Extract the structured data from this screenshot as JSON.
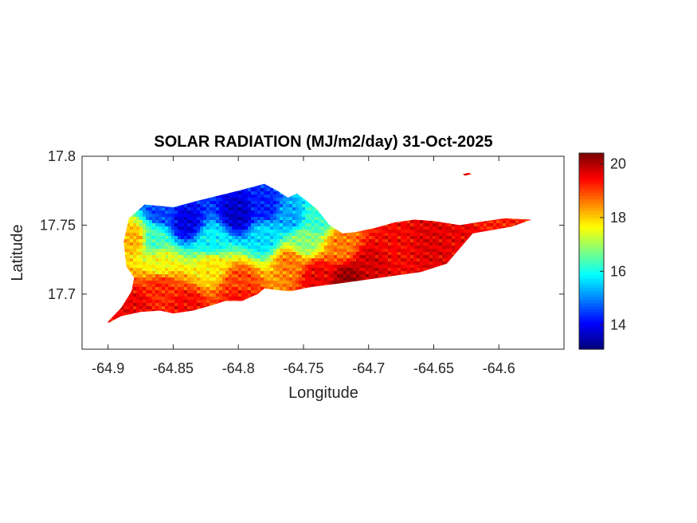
{
  "chart_data": {
    "type": "heatmap",
    "title": "SOLAR RADIATION (MJ/m2/day) 31-Oct-2025",
    "xlabel": "Longitude",
    "ylabel": "Latitude",
    "xlim": [
      -64.92,
      -64.55
    ],
    "ylim": [
      17.66,
      17.8
    ],
    "xticks": [
      -64.9,
      -64.85,
      -64.8,
      -64.75,
      -64.7,
      -64.65,
      -64.6
    ],
    "xtick_labels": [
      "-64.9",
      "-64.85",
      "-64.8",
      "-64.75",
      "-64.7",
      "-64.65",
      "-64.6"
    ],
    "yticks": [
      17.7,
      17.75,
      17.8
    ],
    "ytick_labels": [
      "17.7",
      "17.75",
      "17.8"
    ],
    "colorbar": {
      "colormap": "jet",
      "clim": [
        13.1,
        20.4
      ],
      "ticks": [
        14,
        16,
        18,
        20
      ],
      "tick_labels": [
        "14",
        "16",
        "18",
        "20"
      ]
    },
    "grid": false,
    "legend": "none",
    "island_outline": [
      [
        -64.9,
        17.68
      ],
      [
        -64.89,
        17.69
      ],
      [
        -64.882,
        17.702
      ],
      [
        -64.88,
        17.712
      ],
      [
        -64.886,
        17.72
      ],
      [
        -64.888,
        17.738
      ],
      [
        -64.884,
        17.755
      ],
      [
        -64.872,
        17.765
      ],
      [
        -64.85,
        17.763
      ],
      [
        -64.83,
        17.768
      ],
      [
        -64.8,
        17.775
      ],
      [
        -64.78,
        17.78
      ],
      [
        -64.77,
        17.775
      ],
      [
        -64.762,
        17.77
      ],
      [
        -64.755,
        17.773
      ],
      [
        -64.748,
        17.768
      ],
      [
        -64.74,
        17.762
      ],
      [
        -64.73,
        17.75
      ],
      [
        -64.72,
        17.744
      ],
      [
        -64.71,
        17.745
      ],
      [
        -64.695,
        17.748
      ],
      [
        -64.68,
        17.752
      ],
      [
        -64.665,
        17.754
      ],
      [
        -64.65,
        17.753
      ],
      [
        -64.63,
        17.75
      ],
      [
        -64.61,
        17.753
      ],
      [
        -64.595,
        17.755
      ],
      [
        -64.575,
        17.754
      ],
      [
        -64.59,
        17.749
      ],
      [
        -64.62,
        17.744
      ],
      [
        -64.64,
        17.722
      ],
      [
        -64.66,
        17.716
      ],
      [
        -64.69,
        17.712
      ],
      [
        -64.72,
        17.708
      ],
      [
        -64.745,
        17.705
      ],
      [
        -64.76,
        17.702
      ],
      [
        -64.77,
        17.703
      ],
      [
        -64.78,
        17.704
      ],
      [
        -64.785,
        17.7
      ],
      [
        -64.79,
        17.698
      ],
      [
        -64.797,
        17.695
      ],
      [
        -64.81,
        17.695
      ],
      [
        -64.82,
        17.692
      ],
      [
        -64.835,
        17.688
      ],
      [
        -64.85,
        17.686
      ],
      [
        -64.86,
        17.688
      ],
      [
        -64.875,
        17.687
      ],
      [
        -64.89,
        17.684
      ],
      [
        -64.9,
        17.679
      ]
    ],
    "islet_outline": [
      [
        -64.628,
        17.787
      ],
      [
        -64.623,
        17.788
      ],
      [
        -64.621,
        17.787
      ],
      [
        -64.626,
        17.786
      ]
    ],
    "value_field": {
      "description_of_trend": "gradient",
      "points": [
        {
          "lon": -64.86,
          "lat": 17.76,
          "value": 14.5
        },
        {
          "lon": -64.84,
          "lat": 17.752,
          "value": 13.8
        },
        {
          "lon": -64.8,
          "lat": 17.758,
          "value": 13.6
        },
        {
          "lon": -64.78,
          "lat": 17.763,
          "value": 14.2
        },
        {
          "lon": -64.76,
          "lat": 17.756,
          "value": 15.2
        },
        {
          "lon": -64.74,
          "lat": 17.755,
          "value": 16.2
        },
        {
          "lon": -64.865,
          "lat": 17.74,
          "value": 16.3
        },
        {
          "lon": -64.82,
          "lat": 17.738,
          "value": 15.8
        },
        {
          "lon": -64.78,
          "lat": 17.742,
          "value": 15.6
        },
        {
          "lon": -64.75,
          "lat": 17.738,
          "value": 16.8
        },
        {
          "lon": -64.88,
          "lat": 17.74,
          "value": 18.2
        },
        {
          "lon": -64.86,
          "lat": 17.722,
          "value": 17.6
        },
        {
          "lon": -64.82,
          "lat": 17.72,
          "value": 17.8
        },
        {
          "lon": -64.76,
          "lat": 17.723,
          "value": 18.6
        },
        {
          "lon": -64.72,
          "lat": 17.735,
          "value": 18.6
        },
        {
          "lon": -64.86,
          "lat": 17.705,
          "value": 19.2
        },
        {
          "lon": -64.8,
          "lat": 17.708,
          "value": 19.0
        },
        {
          "lon": -64.74,
          "lat": 17.713,
          "value": 19.6
        },
        {
          "lon": -64.715,
          "lat": 17.71,
          "value": 20.3
        },
        {
          "lon": -64.88,
          "lat": 17.692,
          "value": 19.6
        },
        {
          "lon": -64.84,
          "lat": 17.69,
          "value": 19.5
        },
        {
          "lon": -64.8,
          "lat": 17.698,
          "value": 19.4
        },
        {
          "lon": -64.68,
          "lat": 17.735,
          "value": 19.5
        },
        {
          "lon": -64.65,
          "lat": 17.738,
          "value": 19.7
        },
        {
          "lon": -64.63,
          "lat": 17.74,
          "value": 19.6
        },
        {
          "lon": -64.6,
          "lat": 17.75,
          "value": 19.3
        },
        {
          "lon": -64.7,
          "lat": 17.722,
          "value": 19.8
        }
      ]
    }
  }
}
